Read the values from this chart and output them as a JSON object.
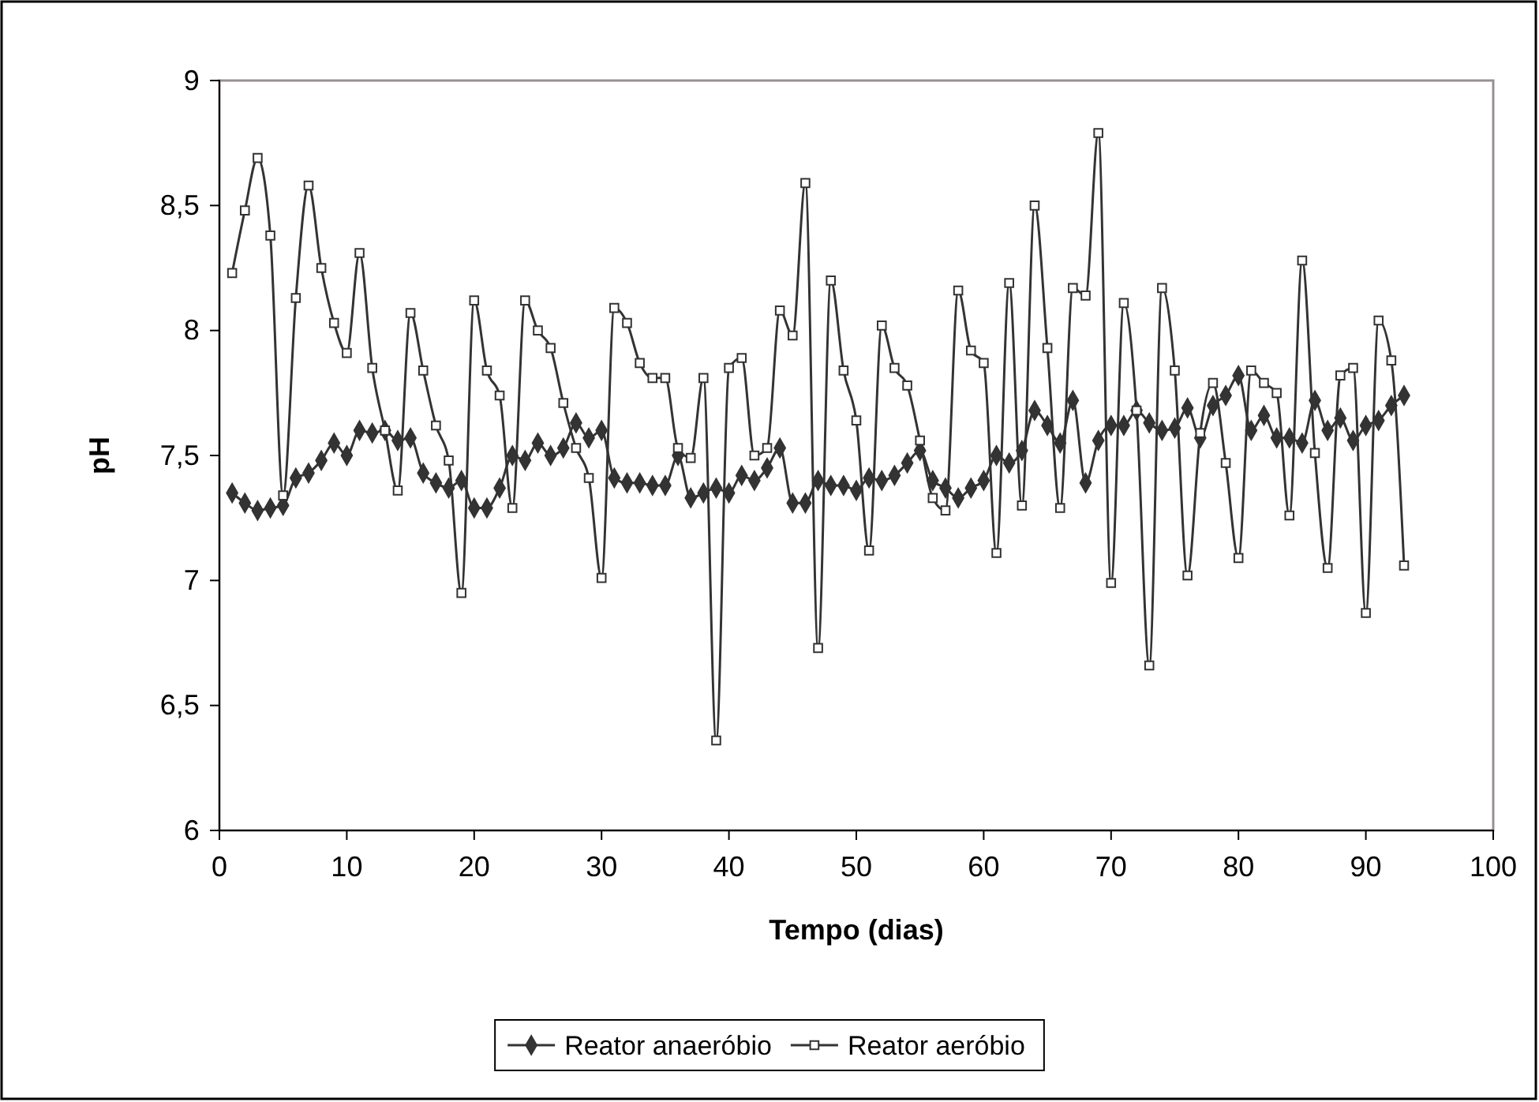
{
  "chart_data": {
    "type": "line",
    "xlabel": "Tempo (dias)",
    "ylabel": "pH",
    "x": [
      1,
      2,
      3,
      4,
      5,
      6,
      7,
      8,
      9,
      10,
      11,
      12,
      13,
      14,
      15,
      16,
      17,
      18,
      19,
      20,
      21,
      22,
      23,
      24,
      25,
      26,
      27,
      28,
      29,
      30,
      31,
      32,
      33,
      34,
      35,
      36,
      37,
      38,
      39,
      40,
      41,
      42,
      43,
      44,
      45,
      46,
      47,
      48,
      49,
      50,
      51,
      52,
      53,
      54,
      55,
      56,
      57,
      58,
      59,
      60,
      61,
      62,
      63,
      64,
      65,
      66,
      67,
      68,
      69,
      70,
      71,
      72,
      73,
      74,
      75,
      76,
      77,
      78,
      79,
      80,
      81,
      82,
      83,
      84,
      85,
      86,
      87,
      88,
      89,
      90,
      91,
      92,
      93
    ],
    "series": [
      {
        "name": "Reator anaeróbio",
        "color": "#333333",
        "marker": "diamond",
        "values": [
          7.35,
          7.31,
          7.28,
          7.29,
          7.3,
          7.41,
          7.43,
          7.48,
          7.55,
          7.5,
          7.6,
          7.59,
          7.6,
          7.56,
          7.57,
          7.43,
          7.39,
          7.37,
          7.4,
          7.29,
          7.29,
          7.37,
          7.5,
          7.48,
          7.55,
          7.5,
          7.53,
          7.63,
          7.57,
          7.6,
          7.41,
          7.39,
          7.39,
          7.38,
          7.38,
          7.5,
          7.33,
          7.35,
          7.37,
          7.35,
          7.42,
          7.4,
          7.45,
          7.53,
          7.31,
          7.31,
          7.4,
          7.38,
          7.38,
          7.36,
          7.41,
          7.4,
          7.42,
          7.47,
          7.52,
          7.4,
          7.37,
          7.33,
          7.37,
          7.4,
          7.5,
          7.47,
          7.52,
          7.68,
          7.62,
          7.55,
          7.72,
          7.39,
          7.56,
          7.62,
          7.62,
          7.68,
          7.63,
          7.6,
          7.61,
          7.69,
          7.57,
          7.7,
          7.74,
          7.82,
          7.6,
          7.66,
          7.57,
          7.57,
          7.55,
          7.72,
          7.6,
          7.65,
          7.56,
          7.62,
          7.64,
          7.7,
          7.74
        ]
      },
      {
        "name": "Reator aeróbio",
        "color": "#333333",
        "marker": "square",
        "values": [
          8.23,
          8.48,
          8.69,
          8.38,
          7.34,
          8.13,
          8.58,
          8.25,
          8.03,
          7.91,
          8.31,
          7.85,
          7.6,
          7.36,
          8.07,
          7.84,
          7.62,
          7.48,
          6.95,
          8.12,
          7.84,
          7.74,
          7.29,
          8.12,
          8.0,
          7.93,
          7.71,
          7.53,
          7.41,
          7.01,
          8.09,
          8.03,
          7.87,
          7.81,
          7.81,
          7.53,
          7.49,
          7.81,
          6.36,
          7.85,
          7.89,
          7.5,
          7.53,
          8.08,
          7.98,
          8.59,
          6.73,
          8.2,
          7.84,
          7.64,
          7.12,
          8.02,
          7.85,
          7.78,
          7.56,
          7.33,
          7.28,
          8.16,
          7.92,
          7.87,
          7.11,
          8.19,
          7.3,
          8.5,
          7.93,
          7.29,
          8.17,
          8.14,
          8.79,
          6.99,
          8.11,
          7.68,
          6.66,
          8.17,
          7.84,
          7.02,
          7.59,
          7.79,
          7.47,
          7.09,
          7.84,
          7.79,
          7.75,
          7.26,
          8.28,
          7.51,
          7.05,
          7.82,
          7.85,
          6.87,
          8.04,
          7.88,
          7.06
        ]
      }
    ],
    "xlim": [
      0,
      100
    ],
    "xticks": [
      0,
      10,
      20,
      30,
      40,
      50,
      60,
      70,
      80,
      90,
      100
    ],
    "ylim": [
      6,
      9
    ],
    "yticks": [
      6,
      {
        "value": 6.5,
        "label": "6,5"
      },
      7,
      {
        "value": 7.5,
        "label": "7,5"
      },
      8,
      {
        "value": 8.5,
        "label": "8,5"
      },
      9
    ],
    "grid": false,
    "legend": "bottom",
    "line_style": "solid"
  }
}
